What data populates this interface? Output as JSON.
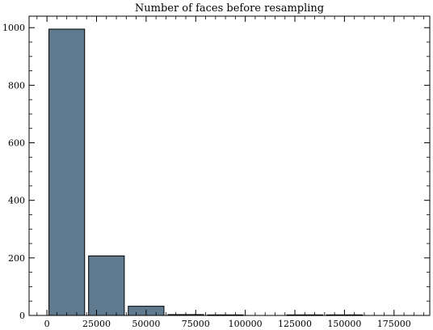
{
  "chart_data": {
    "type": "bar",
    "title": "Number of faces before resampling",
    "xlabel": "",
    "ylabel": "",
    "xlim": [
      -9000,
      193000
    ],
    "ylim": [
      0,
      1040
    ],
    "xticks": [
      0,
      25000,
      50000,
      75000,
      100000,
      125000,
      150000,
      175000
    ],
    "xtick_labels": [
      "0",
      "25000",
      "50000",
      "75000",
      "100000",
      "125000",
      "150000",
      "175000"
    ],
    "yticks": [
      0,
      200,
      400,
      600,
      800,
      1000
    ],
    "ytick_labels": [
      "0",
      "200",
      "400",
      "600",
      "800",
      "1000"
    ],
    "bin_edges": [
      0,
      20000,
      40000,
      60000,
      80000,
      100000,
      120000,
      140000,
      160000,
      180000
    ],
    "values": [
      995,
      207,
      32,
      3,
      2,
      0,
      2,
      2,
      0
    ],
    "bar_fill": "#5f7a8e",
    "bar_edge": "#000000",
    "grid": false,
    "legend": "none"
  }
}
